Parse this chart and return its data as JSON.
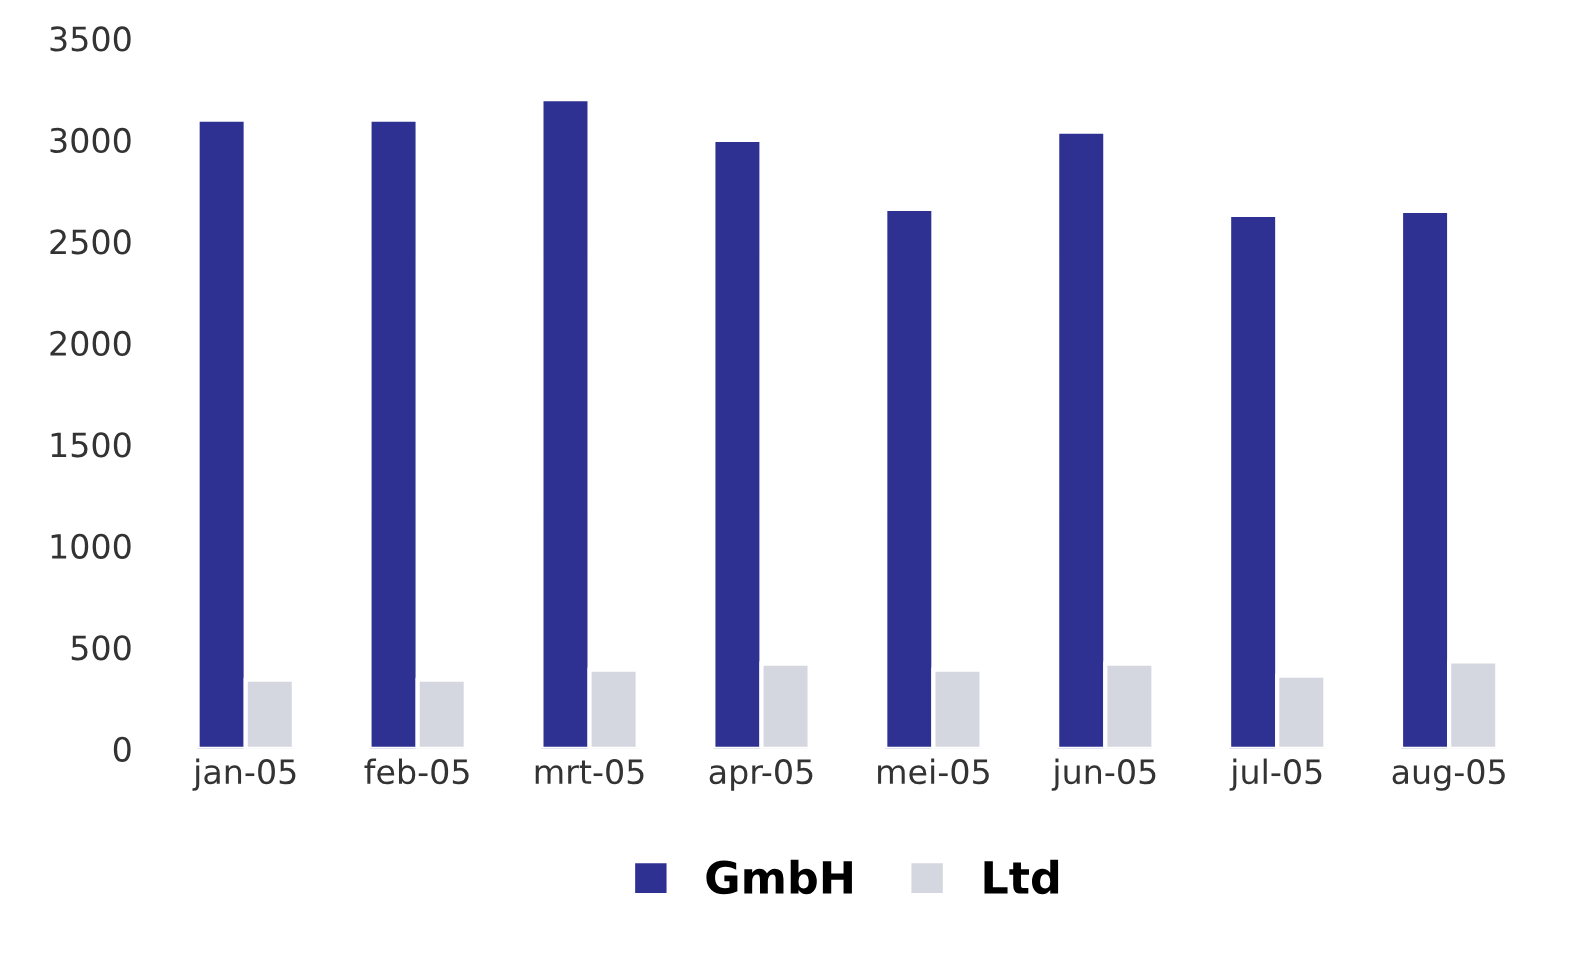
{
  "chart_data": {
    "type": "bar",
    "categories": [
      "jan-05",
      "feb-05",
      "mrt-05",
      "apr-05",
      "mei-05",
      "jun-05",
      "jul-05",
      "aug-05"
    ],
    "series": [
      {
        "name": "GmbH",
        "color": "#2e3192",
        "values": [
          3100,
          3100,
          3200,
          3000,
          2660,
          3040,
          2630,
          2650
        ]
      },
      {
        "name": "Ltd",
        "color": "#d4d7df",
        "values": [
          340,
          340,
          390,
          420,
          390,
          420,
          360,
          430
        ]
      }
    ],
    "ylim": [
      0,
      3500
    ],
    "yticks": [
      0,
      500,
      1000,
      1500,
      2000,
      2500,
      3000,
      3500
    ],
    "grid": false,
    "legend": "bottom"
  }
}
